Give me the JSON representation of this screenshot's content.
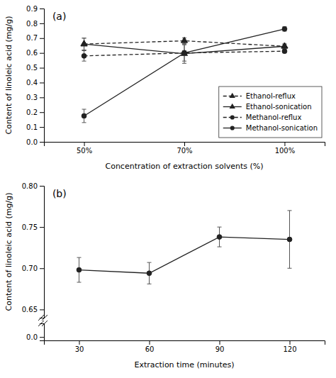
{
  "chart_data": [
    {
      "type": "line",
      "title": "(a)",
      "categories": [
        "50%",
        "70%",
        "100%"
      ],
      "x_label": "Concentration of extraction solvents (%)",
      "y_label": "Content of linoleic acid (mg/g)",
      "ylim": [
        0,
        0.9
      ],
      "yticks": [
        {
          "value": 0,
          "label": "0.0"
        },
        0.1,
        0.2,
        0.3,
        0.4,
        0.5,
        0.6,
        0.7,
        0.8,
        0.9
      ],
      "grid": false,
      "legend": "lower right",
      "series": [
        {
          "name": "Ethanol-reflux",
          "color": "#222222",
          "marker": "triangle",
          "line_style": "dashed",
          "values": [
            0.66,
            0.682,
            0.645
          ],
          "errors": [
            0.04,
            0.02,
            0.015
          ]
        },
        {
          "name": "Ethanol-sonication",
          "color": "#222222",
          "marker": "triangle",
          "line_style": "solid",
          "values": [
            0.66,
            0.595,
            0.645
          ],
          "errors": [
            0.04,
            0.065,
            0.015
          ]
        },
        {
          "name": "Methanol-reflux",
          "color": "#222222",
          "marker": "circle",
          "line_style": "dashed",
          "values": [
            0.58,
            0.6,
            0.612
          ],
          "errors": [
            0.035,
            0.015,
            0.012
          ]
        },
        {
          "name": "Methanol-sonication",
          "color": "#222222",
          "marker": "circle",
          "line_style": "solid",
          "values": [
            0.175,
            0.6,
            0.762
          ],
          "errors": [
            0.045,
            0.055,
            0.015
          ]
        }
      ]
    },
    {
      "type": "line",
      "title": "(b)",
      "x": [
        30,
        60,
        90,
        120
      ],
      "xlim": [
        15,
        135
      ],
      "y_label": "Content of linoleic acid (mg/g)",
      "ylim": [
        0.64,
        0.8
      ],
      "yticks": [
        0.65,
        {
          "value": 0.7,
          "label": "0.70"
        },
        0.75,
        {
          "value": 0.8,
          "label": "0.80"
        }
      ],
      "tick_labels": "y",
      "grid": false,
      "series": [
        {
          "color": "#222222",
          "marker": "circle",
          "line_style": "solid",
          "values": [
            0.698,
            0.694,
            0.738,
            0.735
          ],
          "errors": [
            0.015,
            0.013,
            0.012,
            0.035
          ]
        }
      ]
    },
    {
      "type": "line",
      "x_label": "Extraction time (minutes)",
      "xlim": [
        15,
        135
      ],
      "xticks": [
        30,
        60,
        90,
        120
      ],
      "ylim": [
        -0.02,
        0.08
      ],
      "yticks": [
        {
          "value": 0,
          "label": "0.0"
        }
      ],
      "grid": false,
      "series": []
    }
  ]
}
